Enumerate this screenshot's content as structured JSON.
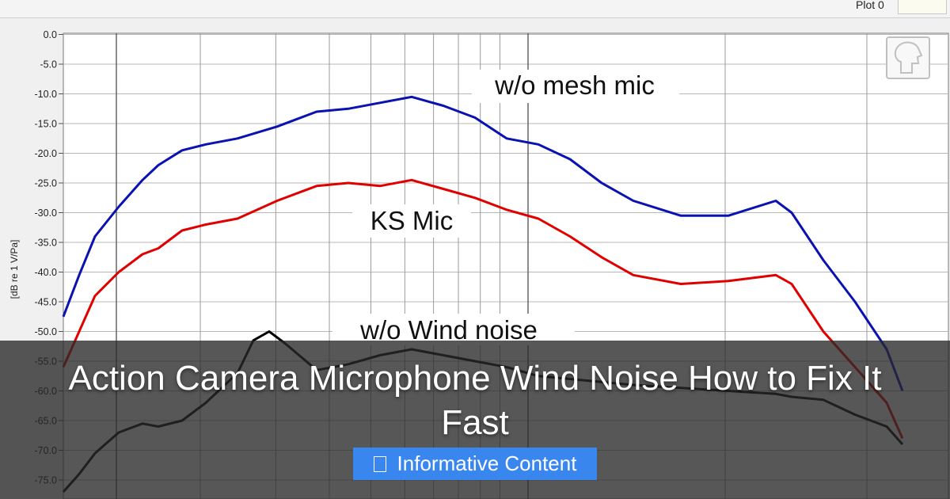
{
  "header": {
    "plot_tab_label": "Plot 0"
  },
  "overlay": {
    "headline": "Action Camera Microphone Wind Noise How to Fix It Fast",
    "badge_label": "Informative Content",
    "badge_icon": "document-icon",
    "badge_color": "#3a86ef"
  },
  "chart_data": {
    "type": "line",
    "ylabel": "[dB re 1 V/Pa]",
    "ylim": [
      -77,
      0
    ],
    "yticks": [
      0,
      -5,
      -10,
      -15,
      -20,
      -25,
      -30,
      -35,
      -40,
      -45,
      -50,
      -55,
      -60,
      -65,
      -70,
      -75
    ],
    "ytick_labels": [
      "0.0",
      "-5.0",
      "-10.0",
      "-15.0",
      "-20.0",
      "-25.0",
      "-30.0",
      "-35.0",
      "-40.0",
      "-45.0",
      "-50.0",
      "-55.0",
      "-60.0",
      "-65.0",
      "-70.0",
      "-75.0"
    ],
    "x_scale": "log",
    "grid": true,
    "annotations": [
      "w/o mesh mic",
      "KS Mic",
      "w/o Wind noise"
    ],
    "series": [
      {
        "name": "w/o mesh mic",
        "color": "#0a12b0",
        "x": [
          80,
          100,
          120,
          150,
          180,
          200,
          230,
          260,
          300,
          350,
          400,
          440,
          480,
          520,
          560,
          600,
          640,
          680,
          720,
          760,
          800,
          860,
          920,
          980,
          1000,
          1040,
          1080,
          1120,
          1140
        ],
        "values": [
          -47.5,
          -40.5,
          -34,
          -29,
          -24.5,
          -22,
          -19.5,
          -18.5,
          -17.5,
          -15.5,
          -13,
          -12.5,
          -11.5,
          -10.5,
          -12,
          -14,
          -17.5,
          -18.5,
          -21,
          -25,
          -28,
          -30.5,
          -30.5,
          -28,
          -30,
          -38,
          -45,
          -53,
          -60
        ]
      },
      {
        "name": "KS Mic",
        "color": "#e00000",
        "x": [
          80,
          100,
          120,
          150,
          180,
          200,
          230,
          260,
          300,
          350,
          400,
          440,
          480,
          520,
          560,
          600,
          640,
          680,
          720,
          760,
          800,
          860,
          920,
          980,
          1000,
          1040,
          1080,
          1120,
          1140
        ],
        "values": [
          -56,
          -50,
          -44,
          -40,
          -37,
          -36,
          -33,
          -32,
          -31,
          -28,
          -25.5,
          -25,
          -25.5,
          -24.5,
          -26,
          -27.5,
          -29.5,
          -31,
          -34,
          -37.5,
          -40.5,
          -42,
          -41.5,
          -40.5,
          -42,
          -50,
          -56,
          -62,
          -68
        ]
      },
      {
        "name": "w/o Wind noise",
        "color": "#000000",
        "x": [
          80,
          100,
          120,
          150,
          180,
          200,
          230,
          260,
          300,
          320,
          340,
          360,
          400,
          440,
          480,
          520,
          560,
          600,
          640,
          680,
          720,
          760,
          800,
          860,
          920,
          980,
          1000,
          1040,
          1080,
          1120,
          1140
        ],
        "values": [
          -77,
          -74,
          -70.5,
          -67,
          -65.5,
          -66,
          -65,
          -62,
          -57,
          -51.5,
          -50,
          -52,
          -56.5,
          -55.5,
          -54,
          -53,
          -54,
          -55,
          -56,
          -57.5,
          -58,
          -58.5,
          -59,
          -59.5,
          -60,
          -60.5,
          -61,
          -61.5,
          -64,
          -66,
          -69
        ]
      }
    ]
  }
}
